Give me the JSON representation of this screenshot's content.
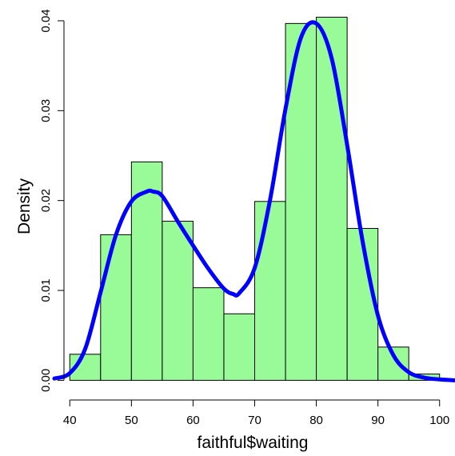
{
  "chart_data": {
    "type": "bar",
    "subtype": "histogram with density curve",
    "title": "",
    "xlabel": "faithful$waiting",
    "ylabel": "Density",
    "bin_edges": [
      40,
      45,
      50,
      55,
      60,
      65,
      70,
      75,
      80,
      85,
      90,
      95,
      100
    ],
    "values": [
      0.0029,
      0.0162,
      0.0243,
      0.0177,
      0.0103,
      0.0074,
      0.0199,
      0.0397,
      0.0404,
      0.0169,
      0.0037,
      0.0007
    ],
    "xlim": [
      37.5,
      102.5
    ],
    "ylim": [
      -0.0013,
      0.0416
    ],
    "x_ticks": [
      40,
      50,
      60,
      70,
      80,
      90,
      100
    ],
    "x_tick_labels": [
      "40",
      "50",
      "60",
      "70",
      "80",
      "90",
      "100"
    ],
    "y_ticks": [
      0.0,
      0.01,
      0.02,
      0.03,
      0.04
    ],
    "y_tick_labels": [
      "0.00",
      "0.01",
      "0.02",
      "0.03",
      "0.04"
    ],
    "density_curve": {
      "x": [
        37.5,
        40,
        42.5,
        45,
        47.5,
        50,
        52.5,
        53.5,
        55,
        57.5,
        60,
        62.5,
        65,
        66.5,
        67.5,
        70,
        72.5,
        75,
        77.5,
        80,
        82.5,
        85,
        87.5,
        90,
        92.5,
        95,
        97.5,
        100,
        102.5
      ],
      "y": [
        0.0002,
        0.0008,
        0.0035,
        0.0098,
        0.0162,
        0.0199,
        0.021,
        0.021,
        0.0205,
        0.0177,
        0.015,
        0.0124,
        0.0102,
        0.0096,
        0.0097,
        0.0125,
        0.0201,
        0.0302,
        0.0381,
        0.0397,
        0.0358,
        0.0262,
        0.0155,
        0.0072,
        0.0028,
        0.0009,
        0.0003,
        0.0001,
        0.0
      ]
    },
    "grid": false,
    "legend": "none",
    "colors": {
      "bar_fill": "#98fb98",
      "bar_stroke": "#000000",
      "curve": "#0000ff"
    }
  }
}
